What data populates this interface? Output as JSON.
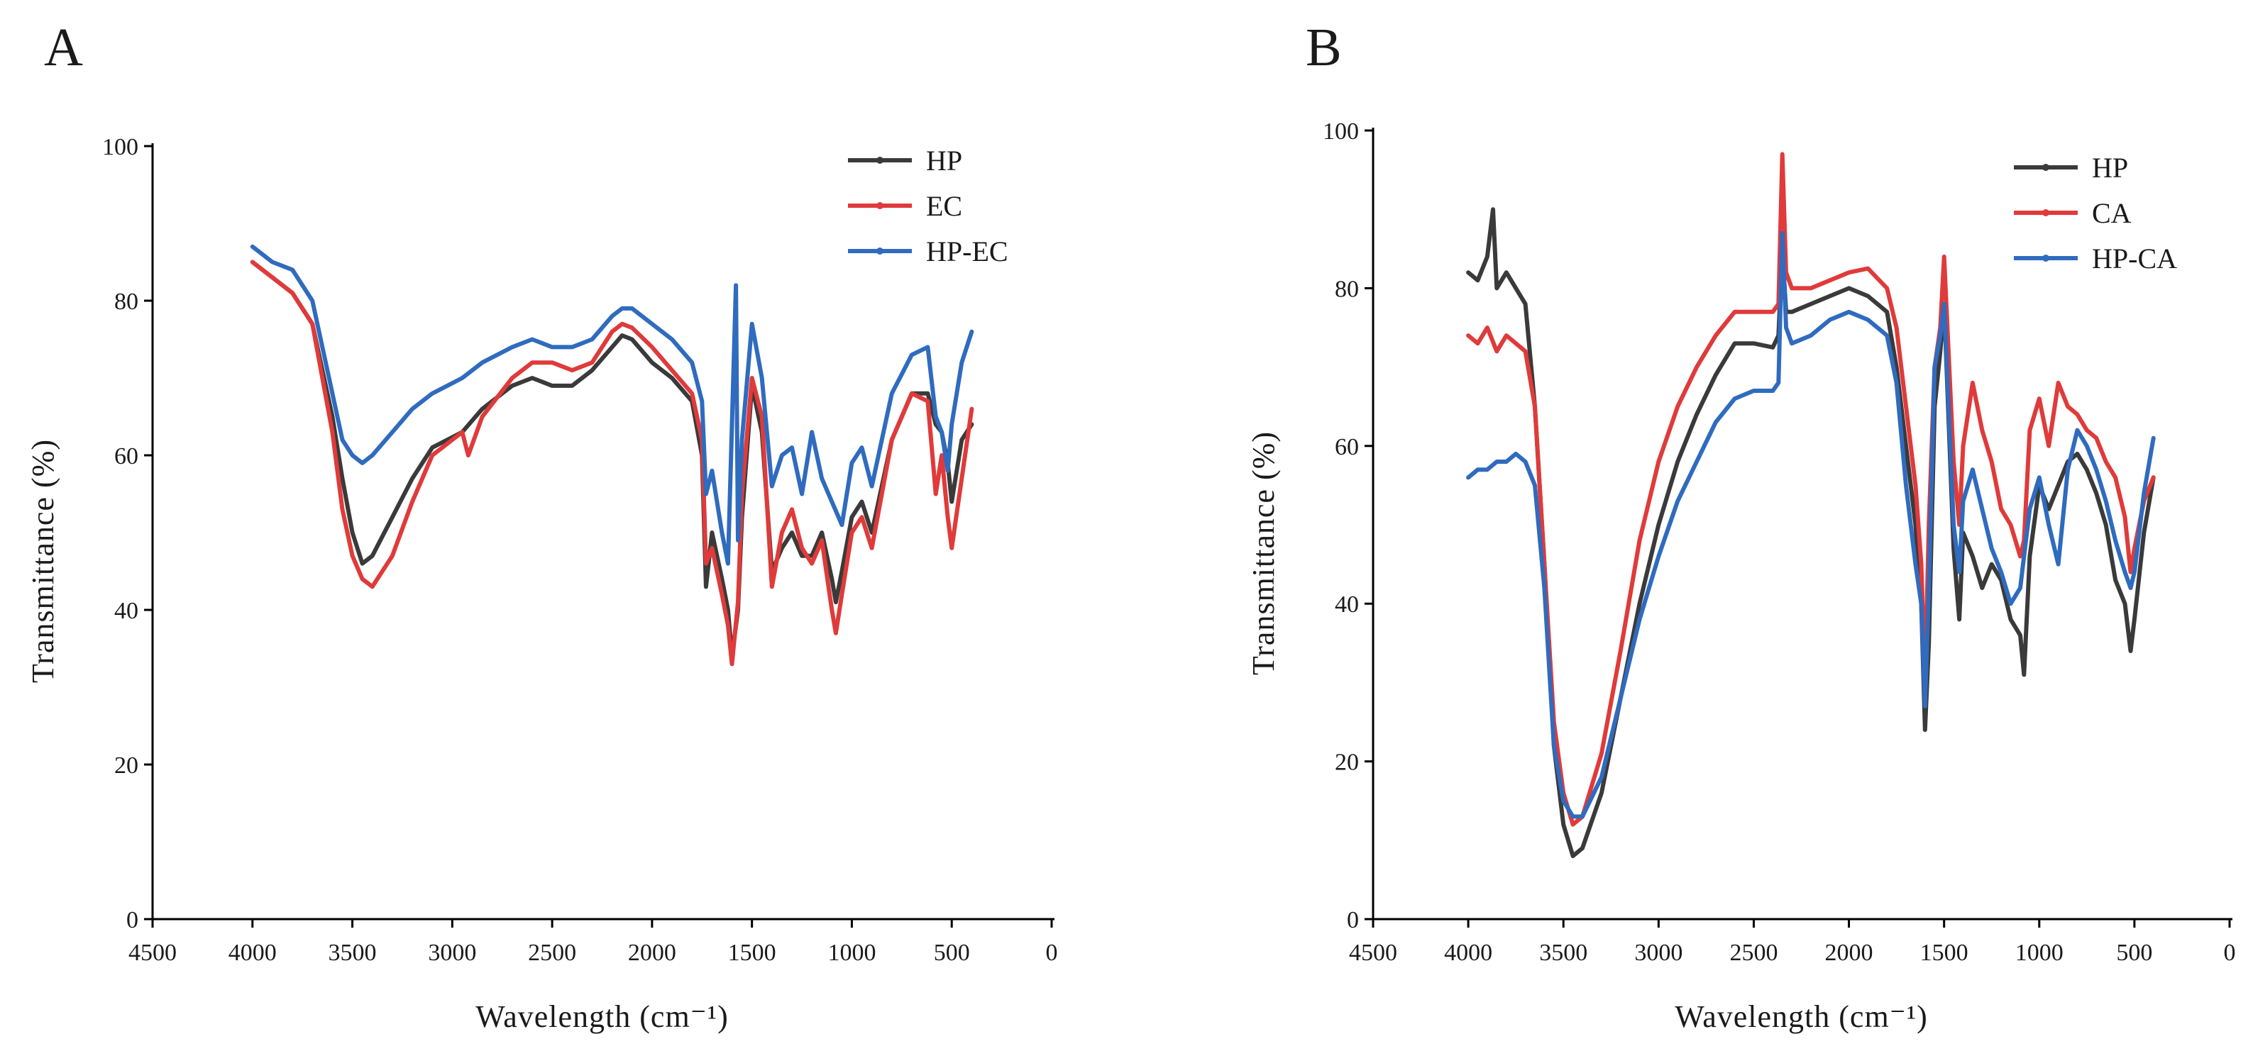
{
  "chart_data": [
    {
      "type": "line",
      "panel_label": "A",
      "xlabel": "Wavelength (cm⁻¹)",
      "ylabel": "Transmittance (%)",
      "xlim": [
        4500,
        0
      ],
      "ylim": [
        0,
        100
      ],
      "xticks": [
        4500,
        4000,
        3500,
        3000,
        2500,
        2000,
        1500,
        1000,
        500,
        0
      ],
      "yticks": [
        0,
        20,
        40,
        60,
        80,
        100
      ],
      "legend_position": "top-right",
      "series": [
        {
          "name": "HP",
          "color": "#3a3a3a",
          "x": [
            4000,
            3900,
            3800,
            3700,
            3600,
            3550,
            3500,
            3450,
            3400,
            3300,
            3200,
            3100,
            2950,
            2850,
            2700,
            2600,
            2500,
            2400,
            2300,
            2200,
            2150,
            2100,
            2000,
            1900,
            1800,
            1750,
            1730,
            1700,
            1650,
            1620,
            1600,
            1570,
            1550,
            1500,
            1450,
            1400,
            1350,
            1300,
            1250,
            1200,
            1150,
            1100,
            1080,
            1050,
            1000,
            950,
            900,
            800,
            700,
            620,
            580,
            550,
            520,
            500,
            450,
            400
          ],
          "values": [
            85,
            83,
            81,
            77,
            65,
            57,
            50,
            46,
            47,
            52,
            57,
            61,
            63,
            66,
            69,
            70,
            69,
            69,
            71,
            74,
            75.5,
            75,
            72,
            70,
            67,
            60,
            43,
            50,
            44,
            40,
            34,
            40,
            52,
            69,
            63,
            45,
            48,
            50,
            47,
            47,
            50,
            44,
            41,
            45,
            52,
            54,
            50,
            62,
            68,
            68,
            64,
            63,
            59,
            54,
            62,
            64
          ]
        },
        {
          "name": "EC",
          "color": "#e03a3a",
          "x": [
            4000,
            3900,
            3800,
            3700,
            3600,
            3550,
            3500,
            3450,
            3400,
            3300,
            3200,
            3100,
            2950,
            2920,
            2850,
            2700,
            2600,
            2500,
            2400,
            2300,
            2200,
            2150,
            2100,
            2000,
            1900,
            1800,
            1750,
            1730,
            1700,
            1650,
            1620,
            1600,
            1570,
            1550,
            1500,
            1450,
            1400,
            1350,
            1300,
            1250,
            1200,
            1150,
            1100,
            1080,
            1050,
            1000,
            950,
            900,
            800,
            700,
            620,
            580,
            550,
            520,
            500,
            450,
            400
          ],
          "values": [
            85,
            83,
            81,
            77,
            63,
            53,
            47,
            44,
            43,
            47,
            54,
            60,
            63,
            60,
            65,
            70,
            72,
            72,
            71,
            72,
            76,
            77,
            76.5,
            74,
            71,
            68,
            62,
            46,
            48,
            42,
            38,
            33,
            41,
            55,
            70,
            65,
            43,
            50,
            53,
            48,
            46,
            49,
            40,
            37,
            42,
            50,
            52,
            48,
            62,
            68,
            67,
            55,
            60,
            52,
            48,
            57,
            66
          ]
        },
        {
          "name": "HP-EC",
          "color": "#2f6bbf",
          "x": [
            4000,
            3900,
            3800,
            3700,
            3600,
            3550,
            3500,
            3450,
            3400,
            3300,
            3200,
            3100,
            2950,
            2900,
            2850,
            2700,
            2600,
            2500,
            2400,
            2300,
            2200,
            2150,
            2100,
            2000,
            1900,
            1800,
            1750,
            1730,
            1700,
            1650,
            1620,
            1580,
            1570,
            1550,
            1500,
            1450,
            1400,
            1350,
            1300,
            1250,
            1200,
            1150,
            1100,
            1050,
            1000,
            950,
            900,
            800,
            700,
            620,
            580,
            550,
            520,
            500,
            450,
            400
          ],
          "values": [
            87,
            85,
            84,
            80,
            68,
            62,
            60,
            59,
            60,
            63,
            66,
            68,
            70,
            71,
            72,
            74,
            75,
            74,
            74,
            75,
            78,
            79,
            79,
            77,
            75,
            72,
            67,
            55,
            58,
            50,
            46,
            82,
            49,
            62,
            77,
            70,
            56,
            60,
            61,
            55,
            63,
            57,
            54,
            51,
            59,
            61,
            56,
            68,
            73,
            74,
            65,
            63,
            58,
            64,
            72,
            76
          ]
        }
      ]
    },
    {
      "type": "line",
      "panel_label": "B",
      "xlabel": "Wavelength (cm⁻¹)",
      "ylabel": "Transmittance (%)",
      "xlim": [
        4500,
        0
      ],
      "ylim": [
        0,
        100
      ],
      "xticks": [
        4500,
        4000,
        3500,
        3000,
        2500,
        2000,
        1500,
        1000,
        500,
        0
      ],
      "yticks": [
        0,
        20,
        40,
        60,
        80,
        100
      ],
      "legend_position": "top-right",
      "series": [
        {
          "name": "HP",
          "color": "#3a3a3a",
          "x": [
            4000,
            3950,
            3900,
            3870,
            3850,
            3800,
            3750,
            3700,
            3650,
            3600,
            3550,
            3500,
            3450,
            3400,
            3300,
            3200,
            3100,
            3000,
            2900,
            2800,
            2700,
            2600,
            2500,
            2400,
            2370,
            2350,
            2330,
            2300,
            2200,
            2100,
            2000,
            1900,
            1800,
            1750,
            1700,
            1650,
            1620,
            1600,
            1580,
            1550,
            1520,
            1500,
            1450,
            1420,
            1400,
            1350,
            1300,
            1250,
            1200,
            1150,
            1100,
            1080,
            1050,
            1000,
            950,
            900,
            850,
            800,
            750,
            700,
            650,
            600,
            550,
            520,
            500,
            450,
            400
          ],
          "values": [
            82,
            81,
            84,
            90,
            80,
            82,
            80,
            78,
            65,
            45,
            22,
            12,
            8,
            9,
            16,
            28,
            40,
            50,
            58,
            64,
            69,
            73,
            73,
            72.5,
            74,
            85,
            77,
            77,
            78,
            79,
            80,
            79,
            77,
            70,
            60,
            50,
            40,
            24,
            35,
            65,
            72,
            78,
            47,
            38,
            49,
            46,
            42,
            45,
            43,
            38,
            36,
            31,
            46,
            55,
            52,
            55,
            58,
            59,
            57,
            54,
            50,
            43,
            40,
            34,
            38,
            49,
            56
          ]
        },
        {
          "name": "CA",
          "color": "#e03a3a",
          "x": [
            4000,
            3950,
            3900,
            3850,
            3800,
            3750,
            3700,
            3650,
            3600,
            3550,
            3500,
            3450,
            3400,
            3300,
            3200,
            3100,
            3000,
            2900,
            2800,
            2700,
            2600,
            2500,
            2400,
            2370,
            2350,
            2330,
            2300,
            2200,
            2100,
            2000,
            1900,
            1800,
            1750,
            1700,
            1650,
            1620,
            1600,
            1580,
            1550,
            1520,
            1500,
            1450,
            1420,
            1400,
            1350,
            1300,
            1250,
            1200,
            1150,
            1100,
            1080,
            1050,
            1000,
            950,
            900,
            850,
            800,
            750,
            700,
            650,
            600,
            550,
            520,
            500,
            450,
            400
          ],
          "values": [
            74,
            73,
            75,
            72,
            74,
            73,
            72,
            65,
            45,
            25,
            16,
            12,
            13,
            21,
            34,
            48,
            58,
            65,
            70,
            74,
            77,
            77,
            77,
            78,
            97,
            82,
            80,
            80,
            81,
            82,
            82.5,
            80,
            75,
            65,
            55,
            45,
            30,
            50,
            70,
            75,
            84,
            58,
            50,
            60,
            68,
            62,
            58,
            52,
            50,
            46,
            48,
            62,
            66,
            60,
            68,
            65,
            64,
            62,
            61,
            58,
            56,
            51,
            44,
            47,
            53,
            56
          ]
        },
        {
          "name": "HP-CA",
          "color": "#2f6bbf",
          "x": [
            4000,
            3950,
            3900,
            3850,
            3800,
            3750,
            3700,
            3650,
            3600,
            3550,
            3500,
            3450,
            3400,
            3300,
            3200,
            3100,
            3000,
            2900,
            2800,
            2700,
            2600,
            2500,
            2400,
            2370,
            2350,
            2330,
            2300,
            2200,
            2100,
            2000,
            1900,
            1800,
            1750,
            1700,
            1650,
            1620,
            1600,
            1580,
            1550,
            1520,
            1500,
            1450,
            1420,
            1400,
            1350,
            1300,
            1250,
            1200,
            1150,
            1100,
            1080,
            1050,
            1000,
            950,
            900,
            850,
            800,
            750,
            700,
            650,
            600,
            550,
            520,
            500,
            450,
            400
          ],
          "values": [
            56,
            57,
            57,
            58,
            58,
            59,
            58,
            55,
            42,
            22,
            15,
            13,
            13,
            18,
            28,
            38,
            46,
            53,
            58,
            63,
            66,
            67,
            67,
            68,
            87,
            75,
            73,
            74,
            76,
            77,
            76,
            74,
            68,
            55,
            45,
            40,
            27,
            42,
            70,
            74,
            78,
            50,
            44,
            53,
            57,
            52,
            47,
            44,
            40,
            42,
            46,
            52,
            56,
            50,
            45,
            57,
            62,
            60,
            57,
            53,
            48,
            44,
            42,
            44,
            54,
            61
          ]
        }
      ]
    }
  ]
}
